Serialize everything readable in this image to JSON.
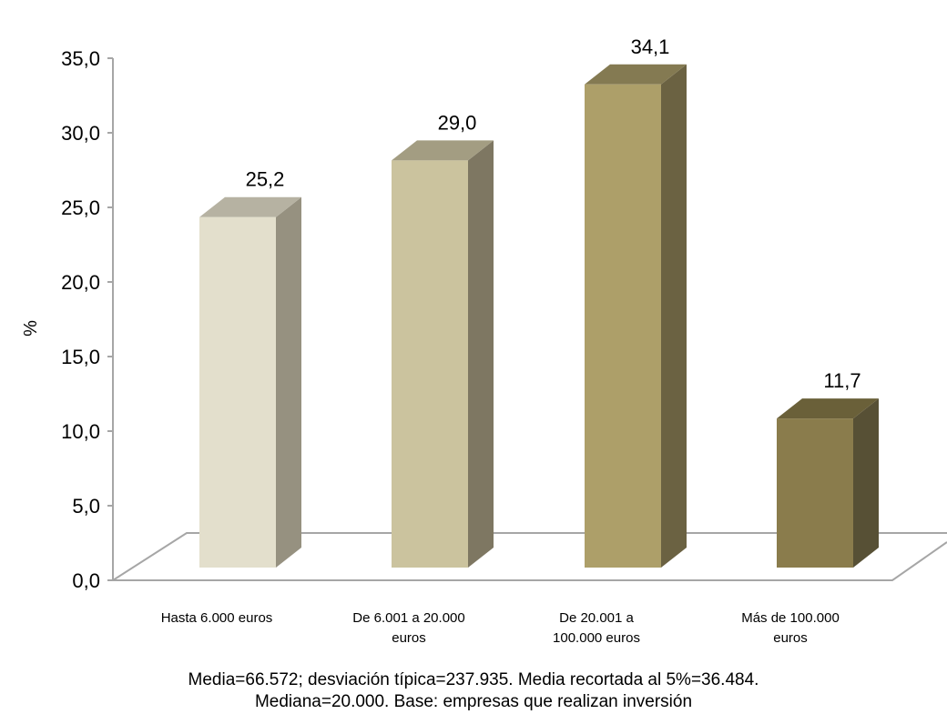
{
  "chart_data": {
    "type": "bar",
    "categories": [
      [
        "Hasta 6.000 euros"
      ],
      [
        "De 6.001 a 20.000",
        "euros"
      ],
      [
        "De 20.001 a",
        "100.000 euros"
      ],
      [
        "Más de 100.000",
        "euros"
      ]
    ],
    "values": [
      25.2,
      29.0,
      34.1,
      11.7
    ],
    "value_labels": [
      "25,2",
      "29,0",
      "34,1",
      "11,7"
    ],
    "ylabel": "%",
    "ylim": [
      0,
      35
    ],
    "yticks": [
      0,
      5,
      10,
      15,
      20,
      25,
      30,
      35
    ],
    "ytick_labels": [
      "0,0",
      "5,0",
      "10,0",
      "15,0",
      "20,0",
      "25,0",
      "30,0",
      "35,0"
    ],
    "grid": false,
    "legend": "none",
    "style": "3d-column",
    "colors": {
      "front": [
        "#e3dfcc",
        "#cbc39e",
        "#ad9f69",
        "#8a7c4c"
      ],
      "side": [
        "#969180",
        "#7e7762",
        "#6b6242",
        "#575035"
      ],
      "top": [
        "#b6b2a2",
        "#a39d82",
        "#847a52",
        "#6a6039"
      ],
      "axis": "#a6a6a6"
    }
  },
  "footnote": {
    "line1": "Media=66.572; desviación típica=237.935. Media recortada al 5%=36.484.",
    "line2": "Mediana=20.000. Base: empresas que realizan inversión"
  }
}
